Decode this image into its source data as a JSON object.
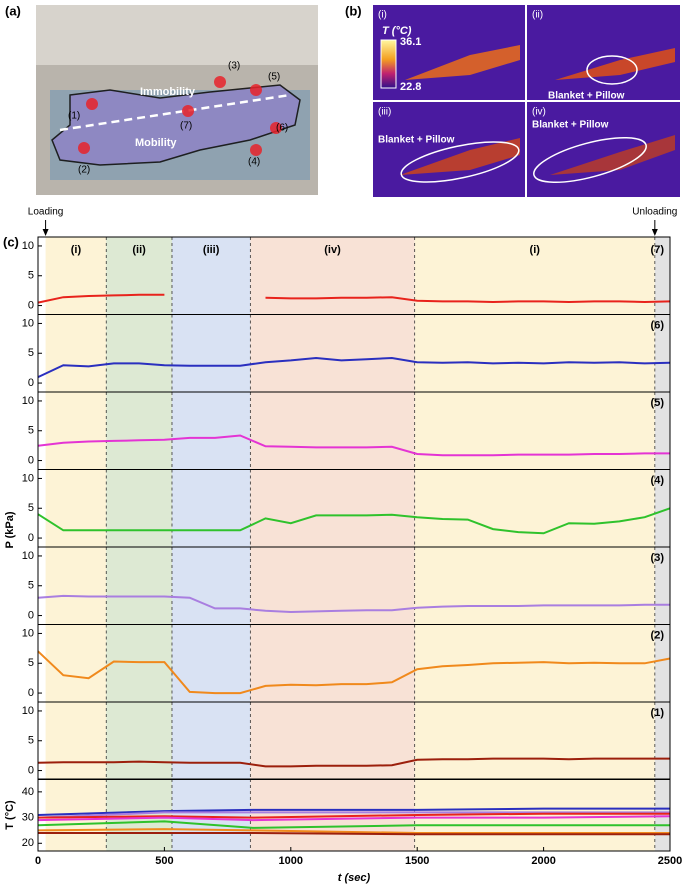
{
  "panel_labels": [
    "(a)",
    "(b)",
    "(c)"
  ],
  "photo": {
    "annotations": [
      "(3)",
      "(5)",
      "Immobility",
      "(1)",
      "(7)",
      "(6)",
      "Mobility",
      "(4)",
      "(2)"
    ]
  },
  "thermal": {
    "colorbar": {
      "title": "T (°C)",
      "max": "36.1",
      "min": "22.8"
    },
    "views": [
      {
        "label": "(i)"
      },
      {
        "label": "(ii)",
        "note": "Blanket + Pillow"
      },
      {
        "label": "(iii)",
        "note": "Blanket + Pillow"
      },
      {
        "label": "(iv)",
        "note": "Blanket + Pillow"
      }
    ]
  },
  "chart_data": {
    "type": "line",
    "xlabel": "t (sec)",
    "ylabel": "P (kPa)",
    "xlim": [
      0,
      2500
    ],
    "xticks": [
      0,
      500,
      1000,
      1500,
      2000,
      2500
    ],
    "ylim": [
      -1.5,
      11.5
    ],
    "yticks": [
      0,
      5,
      10
    ],
    "x": [
      0,
      100,
      200,
      300,
      400,
      500,
      600,
      700,
      800,
      900,
      1000,
      1100,
      1200,
      1300,
      1400,
      1500,
      1600,
      1700,
      1800,
      1900,
      2000,
      2100,
      2200,
      2300,
      2400,
      2500
    ],
    "events": [
      {
        "label": "Loading",
        "value": 30
      },
      {
        "label": "Unloading",
        "value": 2440
      }
    ],
    "phases": [
      {
        "label": "(i)",
        "start": 30,
        "end": 270,
        "color": "#fdf3d6"
      },
      {
        "label": "(ii)",
        "start": 270,
        "end": 530,
        "color": "#dde9d3"
      },
      {
        "label": "(iii)",
        "start": 530,
        "end": 840,
        "color": "#d9e2f3"
      },
      {
        "label": "(iv)",
        "start": 840,
        "end": 1490,
        "color": "#f8e2d6"
      },
      {
        "label": "(i)",
        "start": 1490,
        "end": 2440,
        "color": "#fdf3d6"
      },
      {
        "start": 2440,
        "end": 2500,
        "color": "#e3e3e3"
      }
    ],
    "subplots": [
      {
        "label": "(7)",
        "series": [
          {
            "color": "#e8231c",
            "values": [
              0.5,
              1.4,
              1.6,
              1.7,
              1.8,
              1.8,
              null,
              null,
              null,
              1.3,
              1.2,
              1.2,
              1.3,
              1.3,
              1.4,
              0.8,
              0.7,
              0.7,
              0.6,
              0.7,
              0.7,
              0.6,
              0.7,
              0.7,
              0.6,
              0.7
            ]
          }
        ]
      },
      {
        "label": "(6)",
        "series": [
          {
            "color": "#2a2fbf",
            "values": [
              1,
              3,
              2.8,
              3.3,
              3.3,
              3,
              2.9,
              2.9,
              2.9,
              3.5,
              3.8,
              4.2,
              3.8,
              4,
              4.2,
              3.5,
              3.4,
              3.5,
              3.3,
              3.4,
              3.3,
              3.5,
              3.4,
              3.5,
              3.3,
              3.4
            ]
          }
        ]
      },
      {
        "label": "(5)",
        "series": [
          {
            "color": "#e434d4",
            "values": [
              2.5,
              3,
              3.2,
              3.3,
              3.4,
              3.5,
              3.8,
              3.8,
              4.2,
              2.4,
              2.3,
              2.2,
              2.2,
              2.2,
              2.3,
              1.1,
              0.9,
              0.9,
              0.9,
              1,
              1,
              1,
              1.1,
              1.1,
              1.2,
              1.2
            ]
          }
        ]
      },
      {
        "label": "(4)",
        "series": [
          {
            "color": "#2fc22c",
            "values": [
              4,
              1.3,
              1.3,
              1.3,
              1.3,
              1.3,
              1.3,
              1.3,
              1.3,
              3.3,
              2.5,
              3.8,
              3.8,
              3.8,
              3.9,
              3.5,
              3.2,
              3.1,
              1.5,
              1,
              0.8,
              2.5,
              2.4,
              2.8,
              3.5,
              5
            ]
          }
        ]
      },
      {
        "label": "(3)",
        "series": [
          {
            "color": "#a97ee0",
            "values": [
              3,
              3.3,
              3.2,
              3.2,
              3.2,
              3.2,
              3,
              1.2,
              1.2,
              0.8,
              0.6,
              0.7,
              0.8,
              0.9,
              0.9,
              1.3,
              1.5,
              1.6,
              1.6,
              1.6,
              1.7,
              1.7,
              1.7,
              1.7,
              1.8,
              1.8
            ]
          }
        ]
      },
      {
        "label": "(2)",
        "series": [
          {
            "color": "#f0891c",
            "values": [
              7,
              3,
              2.5,
              5.3,
              5.2,
              5.2,
              0.2,
              0,
              0,
              1.2,
              1.4,
              1.3,
              1.5,
              1.5,
              1.8,
              4,
              4.5,
              4.7,
              5,
              5.1,
              5.2,
              5,
              5.1,
              5,
              5,
              5.8
            ]
          }
        ]
      },
      {
        "label": "(1)",
        "series": [
          {
            "color": "#9c1f0c",
            "values": [
              1.3,
              1.4,
              1.4,
              1.4,
              1.5,
              1.4,
              1.3,
              1.3,
              1.3,
              0.7,
              0.7,
              0.8,
              0.8,
              0.8,
              0.9,
              1.8,
              1.9,
              1.9,
              2,
              2,
              2,
              1.9,
              2,
              2,
              2,
              2
            ]
          }
        ]
      }
    ],
    "temperature": {
      "ylabel": "T (°C)",
      "ylim": [
        17,
        45
      ],
      "yticks": [
        20,
        30,
        40
      ],
      "x": [
        0,
        500,
        850,
        1500,
        2000,
        2500
      ],
      "series": [
        {
          "color": "#2a2fbf",
          "values": [
            31,
            32.5,
            33,
            33,
            33.5,
            33.5
          ]
        },
        {
          "color": "#a97ee0",
          "values": [
            30,
            32,
            32,
            32,
            32,
            32
          ]
        },
        {
          "color": "#e8231c",
          "values": [
            30,
            30.5,
            30,
            31,
            31.5,
            31.5
          ]
        },
        {
          "color": "#e434d4",
          "values": [
            29,
            30,
            29,
            30,
            30,
            30.5
          ]
        },
        {
          "color": "#2fc22c",
          "values": [
            27,
            28.5,
            26,
            27,
            27,
            27
          ]
        },
        {
          "color": "#f0891c",
          "values": [
            25,
            25.5,
            25,
            24,
            24,
            24
          ]
        },
        {
          "color": "#9c1f0c",
          "values": [
            24,
            24,
            24,
            23.5,
            23.5,
            23.5
          ]
        }
      ]
    }
  }
}
